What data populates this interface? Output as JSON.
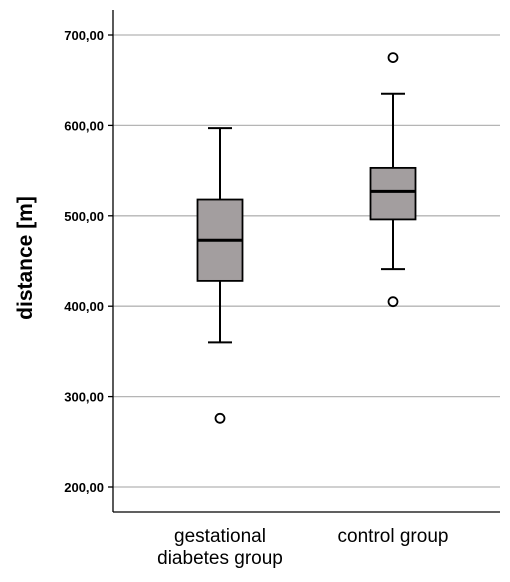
{
  "chart_data": {
    "type": "boxplot",
    "ylabel": "distance [m]",
    "xlabel": "",
    "ylim": [
      180,
      720
    ],
    "yticks": [
      "700,00",
      "600,00",
      "500,00",
      "400,00",
      "300,00",
      "200,00"
    ],
    "ytick_values": [
      700,
      600,
      500,
      400,
      300,
      200
    ],
    "grid": true,
    "box_color": "#a39e9f",
    "groups": [
      {
        "label_lines": [
          "gestational",
          "diabetes group"
        ],
        "whisker_low": 360,
        "q1": 428,
        "median": 473,
        "q3": 518,
        "whisker_high": 597,
        "outliers": [
          276
        ]
      },
      {
        "label_lines": [
          "control group"
        ],
        "whisker_low": 441,
        "q1": 496,
        "median": 527,
        "q3": 553,
        "whisker_high": 635,
        "outliers": [
          675,
          405
        ]
      }
    ]
  }
}
